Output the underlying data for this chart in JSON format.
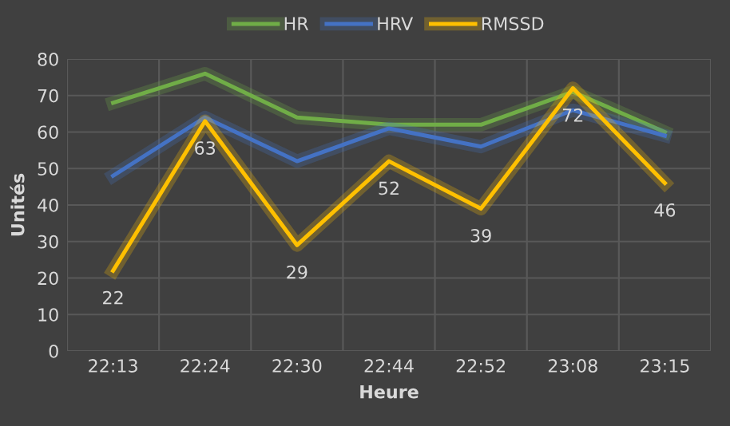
{
  "chart_data": {
    "type": "line",
    "xlabel": "Heure",
    "ylabel": "Unités",
    "categories": [
      "22:13",
      "22:24",
      "22:30",
      "22:44",
      "22:52",
      "23:08",
      "23:15"
    ],
    "series": [
      {
        "name": "HR",
        "color": "#70ad47",
        "values": [
          68,
          76,
          64,
          62,
          62,
          71,
          60
        ]
      },
      {
        "name": "HRV",
        "color": "#4472c4",
        "values": [
          48,
          64,
          52,
          61,
          56,
          66,
          59
        ]
      },
      {
        "name": "RMSSD",
        "color": "#ffc000",
        "values": [
          22,
          63,
          29,
          52,
          39,
          72,
          46
        ],
        "value_labels": [
          "22",
          "63",
          "29",
          "52",
          "39",
          "72",
          "46"
        ]
      }
    ],
    "ylim": [
      0,
      80
    ],
    "yticks": [
      0,
      10,
      20,
      30,
      40,
      50,
      60,
      70,
      80
    ],
    "grid": true,
    "legend": "top",
    "marker": "none",
    "line_style": "solid"
  }
}
